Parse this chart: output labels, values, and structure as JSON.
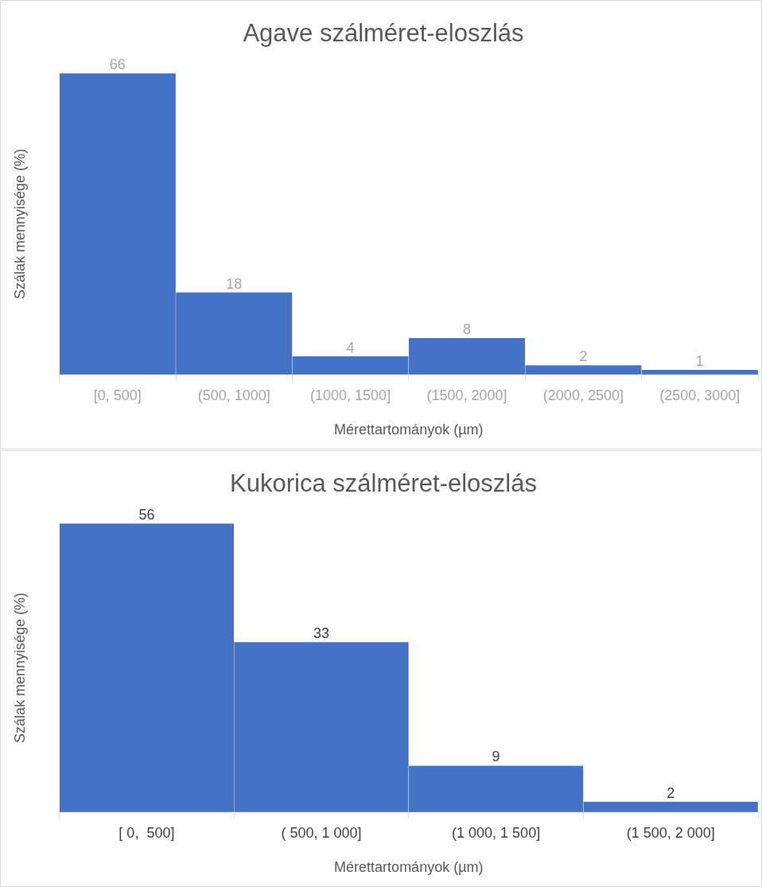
{
  "chart_data": [
    {
      "type": "bar",
      "title": "Agave szálméret-eloszlás",
      "xlabel": "Mérettartományok (µm)",
      "ylabel": "Szálak mennyisége (%)",
      "categories": [
        "[0, 500]",
        "(500, 1000]",
        "(1000, 1500]",
        "(1500, 2000]",
        "(2000, 2500]",
        "(2500, 3000]"
      ],
      "values": [
        66,
        18,
        4,
        8,
        2,
        1
      ],
      "color": "#4472c4",
      "data_labels": true,
      "grid": false,
      "legend": false
    },
    {
      "type": "bar",
      "title": "Kukorica szálméret-eloszlás",
      "xlabel": "Mérettartományok (µm)",
      "ylabel": "Szálak mennyisége (%)",
      "categories": [
        "[ 0,  500]",
        "( 500, 1 000]",
        "(1 000, 1 500]",
        "(1 500, 2 000]"
      ],
      "values": [
        56,
        33,
        9,
        2
      ],
      "color": "#4472c4",
      "data_labels": true,
      "grid": false,
      "legend": false
    }
  ]
}
